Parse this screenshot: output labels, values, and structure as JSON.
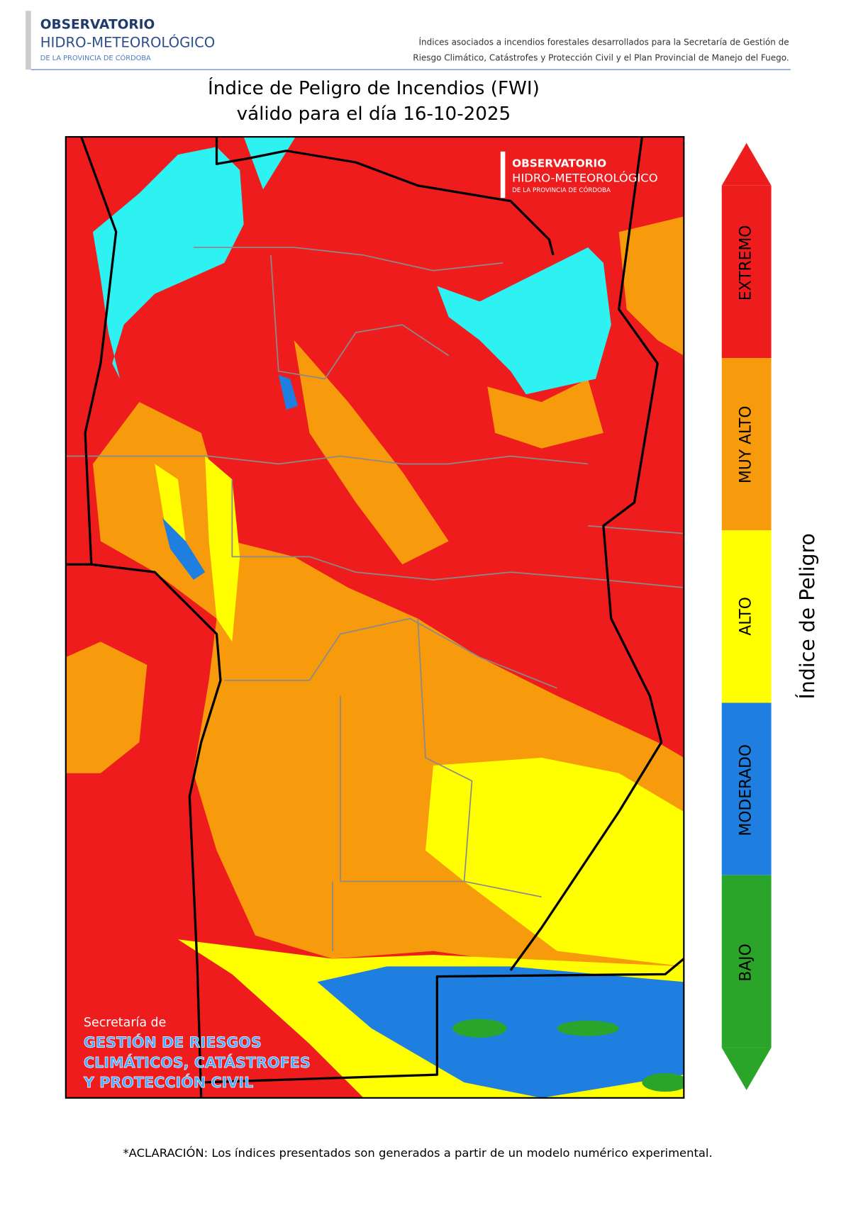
{
  "header": {
    "logo": {
      "line1": "OBSERVATORIO",
      "line2": "HIDRO-METEOROLÓGICO",
      "line3": "DE LA PROVINCIA DE CÓRDOBA"
    },
    "description": [
      "Índices asociados a incendios forestales desarrollados para la Secretaría de Gestión de",
      "Riesgo Climático, Catástrofes y Protección Civil y el Plan Provincial de Manejo del Fuego."
    ]
  },
  "title": [
    "Índice de Peligro de Incendios (FWI)",
    "válido para el día 16-10-2025"
  ],
  "map": {
    "watermark": {
      "line1": "OBSERVATORIO",
      "line2": "HIDRO-METEOROLÓGICO",
      "line3": "DE LA PROVINCIA DE CÓRDOBA"
    },
    "secretaria": [
      "Secretaría de",
      "GESTIÓN DE RIESGOS",
      "CLIMÁTICOS, CATÁSTROFES",
      "Y PROTECCIÓN CIVIL"
    ]
  },
  "legend": {
    "label": "Índice de Peligro",
    "levels": [
      "EXTREMO",
      "MUY ALTO",
      "ALTO",
      "MODERADO",
      "BAJO"
    ]
  },
  "footnote": "*ACLARACIÓN: Los índices presentados son generados a partir de un modelo numérico experimental."
}
